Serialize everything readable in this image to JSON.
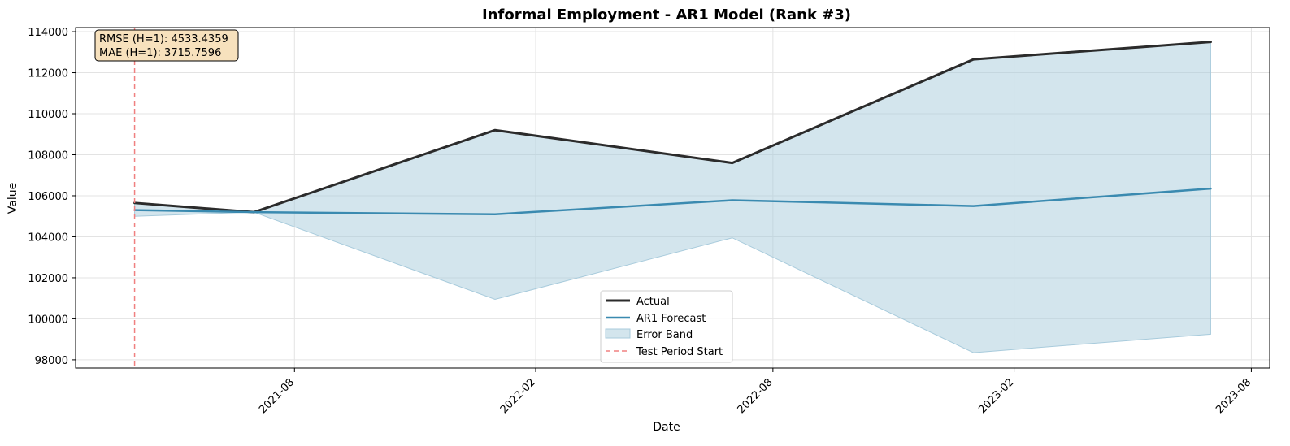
{
  "chart_data": {
    "type": "line",
    "title": "Informal Employment - AR1 Model (Rank #3)",
    "xlabel": "Date",
    "ylabel": "Value",
    "x_axis": {
      "type": "date",
      "range": [
        "2021-02-15",
        "2023-08-15"
      ]
    },
    "ylim": [
      97600,
      114200
    ],
    "grid": true,
    "legend_position": "bottom-center",
    "x_ticks": [
      "2021-08",
      "2022-02",
      "2022-08",
      "2023-02",
      "2023-08"
    ],
    "y_ticks": [
      98000,
      100000,
      102000,
      104000,
      106000,
      108000,
      110000,
      112000,
      114000
    ],
    "dates": [
      "2021-04-01",
      "2021-07-01",
      "2022-01-01",
      "2022-07-01",
      "2023-01-01",
      "2023-07-01"
    ],
    "series": [
      {
        "name": "Actual",
        "color": "#2b2b2b",
        "values": [
          105650,
          105200,
          109200,
          107600,
          112650,
          113500
        ]
      },
      {
        "name": "AR1 Forecast",
        "color": "#3a8ab0",
        "values": [
          105300,
          105200,
          105100,
          105780,
          105500,
          106350
        ]
      }
    ],
    "band": {
      "name": "Error Band",
      "color": "#a8cbdc",
      "lower": [
        105000,
        105200,
        100950,
        103950,
        98350,
        99250
      ],
      "upper": [
        105650,
        105200,
        109200,
        107600,
        112650,
        113500
      ]
    },
    "vline": {
      "name": "Test Period Start",
      "date": "2021-04-01",
      "color": "#f08080"
    },
    "metrics": {
      "rmse": "RMSE (H=1): 4533.4359",
      "mae": "MAE (H=1): 3715.7596"
    }
  }
}
